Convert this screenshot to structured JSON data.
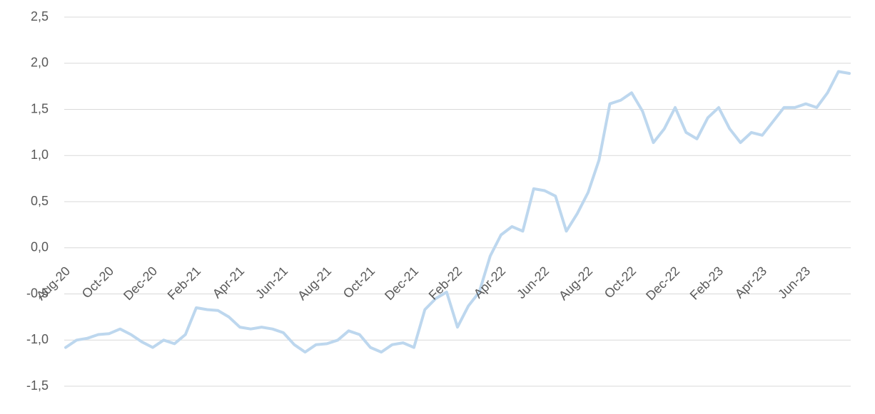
{
  "chart_data": {
    "type": "line",
    "categories": [
      "Aug-20",
      null,
      null,
      null,
      "Oct-20",
      null,
      null,
      null,
      "Dec-20",
      null,
      null,
      null,
      "Feb-21",
      null,
      null,
      null,
      "Apr-21",
      null,
      null,
      null,
      "Jun-21",
      null,
      null,
      null,
      "Aug-21",
      null,
      null,
      null,
      "Oct-21",
      null,
      null,
      null,
      "Dec-21",
      null,
      null,
      null,
      "Feb-22",
      null,
      null,
      null,
      "Apr-22",
      null,
      null,
      null,
      "Jun-22",
      null,
      null,
      null,
      "Aug-22",
      null,
      null,
      null,
      "Oct-22",
      null,
      null,
      null,
      "Dec-22",
      null,
      null,
      null,
      "Feb-23",
      null,
      null,
      null,
      "Apr-23",
      null,
      null,
      null,
      "Jun-23",
      null,
      null,
      null,
      null
    ],
    "values": [
      -1.08,
      -1.0,
      -0.98,
      -0.94,
      -0.93,
      -0.88,
      -0.94,
      -1.02,
      -1.08,
      -1.0,
      -1.04,
      -0.94,
      -0.65,
      -0.67,
      -0.68,
      -0.75,
      -0.86,
      -0.88,
      -0.86,
      -0.88,
      -0.92,
      -1.05,
      -1.13,
      -1.05,
      -1.04,
      -1.0,
      -0.9,
      -0.94,
      -1.08,
      -1.13,
      -1.05,
      -1.03,
      -1.08,
      -0.67,
      -0.55,
      -0.48,
      -0.86,
      -0.63,
      -0.48,
      -0.09,
      0.14,
      0.23,
      0.18,
      0.64,
      0.62,
      0.56,
      0.18,
      0.37,
      0.6,
      0.95,
      1.56,
      1.6,
      1.68,
      1.48,
      1.14,
      1.29,
      1.52,
      1.25,
      1.18,
      1.41,
      1.52,
      1.29,
      1.14,
      1.25,
      1.22,
      1.37,
      1.52,
      1.52,
      1.56,
      1.52,
      1.68,
      1.91,
      1.89
    ],
    "color": "#bdd7ee",
    "ylim": [
      -1.5,
      2.5
    ],
    "yticks": [
      {
        "value": -1.5,
        "label": "-1,5"
      },
      {
        "value": -1.0,
        "label": "-1,0"
      },
      {
        "value": -0.5,
        "label": "-0,5"
      },
      {
        "value": 0,
        "label": "0,0"
      },
      {
        "value": 0.5,
        "label": "0,5"
      },
      {
        "value": 1.0,
        "label": "1,0"
      },
      {
        "value": 1.5,
        "label": "1,5"
      },
      {
        "value": 2.0,
        "label": "2,0"
      },
      {
        "value": 2.5,
        "label": "2,5"
      }
    ],
    "grid": true
  }
}
